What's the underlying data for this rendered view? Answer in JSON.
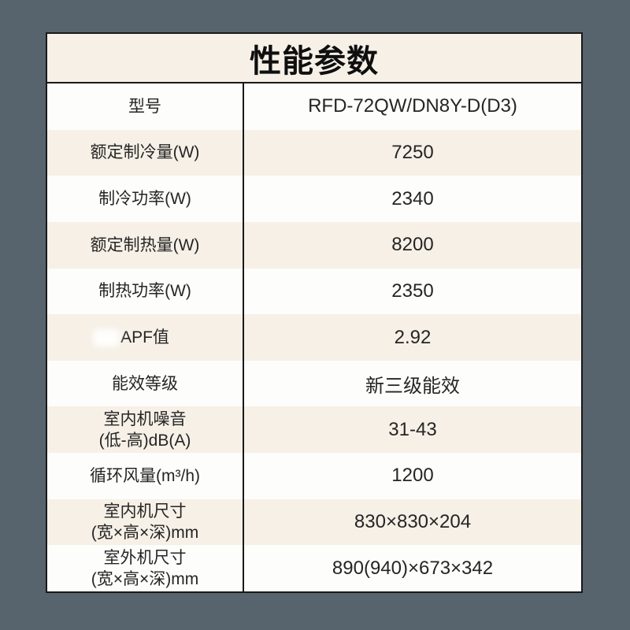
{
  "page": {
    "background_color": "#57646e"
  },
  "spec_table": {
    "title": "性能参数",
    "rows": [
      {
        "label": "型号",
        "value": "RFD-72QW/DN8Y-D(D3)"
      },
      {
        "label": "额定制冷量(W)",
        "value": "7250"
      },
      {
        "label": "制冷功率(W)",
        "value": "2340"
      },
      {
        "label": "额定制热量(W)",
        "value": "8200"
      },
      {
        "label": "制热功率(W)",
        "value": "2350"
      },
      {
        "label": "APF值",
        "value": "2.92",
        "smudge": true
      },
      {
        "label": "能效等级",
        "value": "新三级能效"
      },
      {
        "label": "室内机噪音\n(低-高)dB(A)",
        "value": "31-43"
      },
      {
        "label": "循环风量(m³/h)",
        "value": "1200"
      },
      {
        "label": "室内机尺寸\n(宽×高×深)mm",
        "value": "830×830×204"
      },
      {
        "label": "室外机尺寸\n(宽×高×深)mm",
        "value": "890(940)×673×342"
      }
    ],
    "colors": {
      "page_background": "#57646e",
      "row_cream": "#f6f0e6",
      "row_white": "#fdfdfc",
      "border": "#191919",
      "text": "#252525",
      "title": "#0f0f0f"
    }
  }
}
